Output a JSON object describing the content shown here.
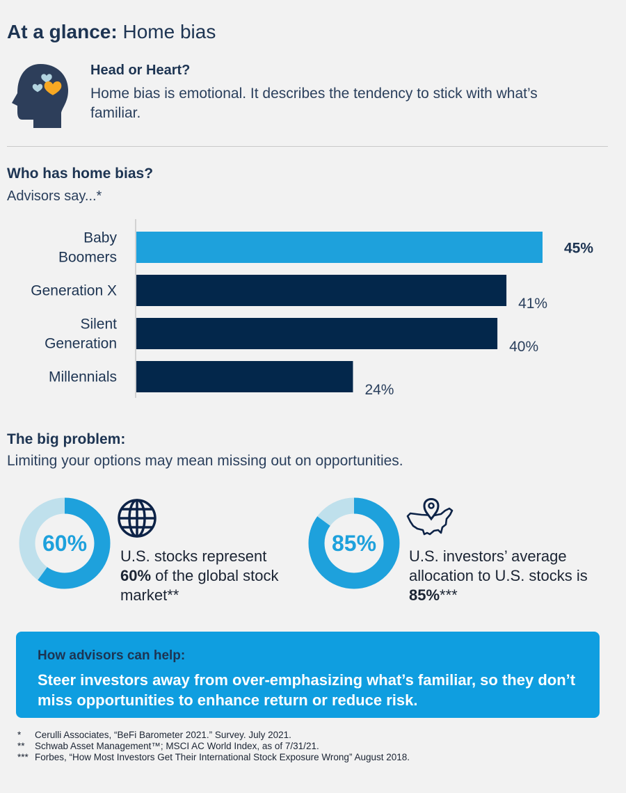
{
  "title": {
    "bold": "At a glance:",
    "rest": "Home bias"
  },
  "intro": {
    "heading": "Head or Heart?",
    "text": "Home bias is emotional. It describes the tendency to stick with what’s familiar."
  },
  "bias_section": {
    "heading": "Who has home bias?",
    "subheading": "Advisors say...*"
  },
  "chart_data": {
    "type": "bar",
    "orientation": "horizontal",
    "categories": [
      [
        "Baby",
        "Boomers"
      ],
      [
        "Generation X"
      ],
      [
        "Silent",
        "Generation"
      ],
      [
        "Millennials"
      ]
    ],
    "values": [
      45,
      41,
      40,
      24
    ],
    "value_labels": [
      "45%",
      "41%",
      "40%",
      "24%"
    ],
    "highlight_index": 0,
    "colors": {
      "highlight": "#1ea1dc",
      "default": "#03274b",
      "axis": "#c8c8c8"
    },
    "xlim": [
      0,
      45
    ],
    "grid": false,
    "legend": "none"
  },
  "problem_section": {
    "heading": "The big problem:",
    "subheading": "Limiting your options may mean missing out on opportunities."
  },
  "stats": [
    {
      "percent": 60,
      "label": "60%",
      "icon": "globe-icon",
      "text_before": "U.S. stocks represent",
      "text_bold": "60%",
      "text_after": " of the global stock market**"
    },
    {
      "percent": 85,
      "label": "85%",
      "icon": "us-map-pin-icon",
      "text_before": "U.S. investors’ average allocation to U.S. stocks is",
      "text_bold": "85%",
      "text_after": "***"
    }
  ],
  "donut_colors": {
    "filled": "#1ea1dc",
    "remaining": "#bfe0ec"
  },
  "help": {
    "heading": "How advisors can help:",
    "text": "Steer investors away from over-emphasizing what’s familiar, so they don’t miss opportunities to enhance return or reduce risk."
  },
  "footnotes": [
    {
      "mark": "*",
      "text": "Cerulli Associates, “BeFi Barometer 2021.” Survey. July 2021."
    },
    {
      "mark": "**",
      "text": "Schwab Asset Management™; MSCI AC World Index, as of 7/31/21."
    },
    {
      "mark": "***",
      "text": "Forbes, “How Most Investors Get Their International Stock Exposure Wrong” August 2018."
    }
  ]
}
